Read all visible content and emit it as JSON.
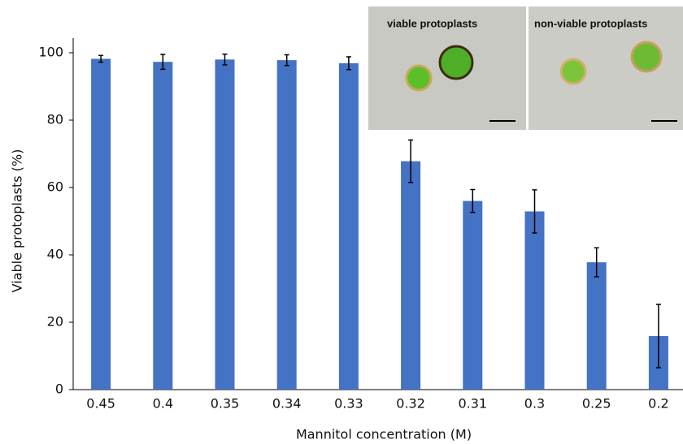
{
  "chart_data": {
    "type": "bar",
    "categories": [
      "0.45",
      "0.4",
      "0.35",
      "0.34",
      "0.33",
      "0.32",
      "0.31",
      "0.3",
      "0.25",
      "0.2"
    ],
    "values": [
      98.2,
      97.3,
      98,
      97.8,
      96.9,
      67.8,
      56,
      52.9,
      37.8,
      15.9
    ],
    "errors": [
      1,
      2.2,
      1.6,
      1.6,
      1.9,
      6.3,
      3.4,
      6.4,
      4.3,
      9.4
    ],
    "color": "#4472c4",
    "ylim": [
      0,
      100
    ],
    "yticks": [
      0,
      20,
      40,
      60,
      80,
      100
    ],
    "ylabel": "Viable protoplasts (%)",
    "xlabel": "Mannitol concentration (M)",
    "annotations": [
      "viable protoplasts",
      "non-viable protoplasts"
    ]
  }
}
